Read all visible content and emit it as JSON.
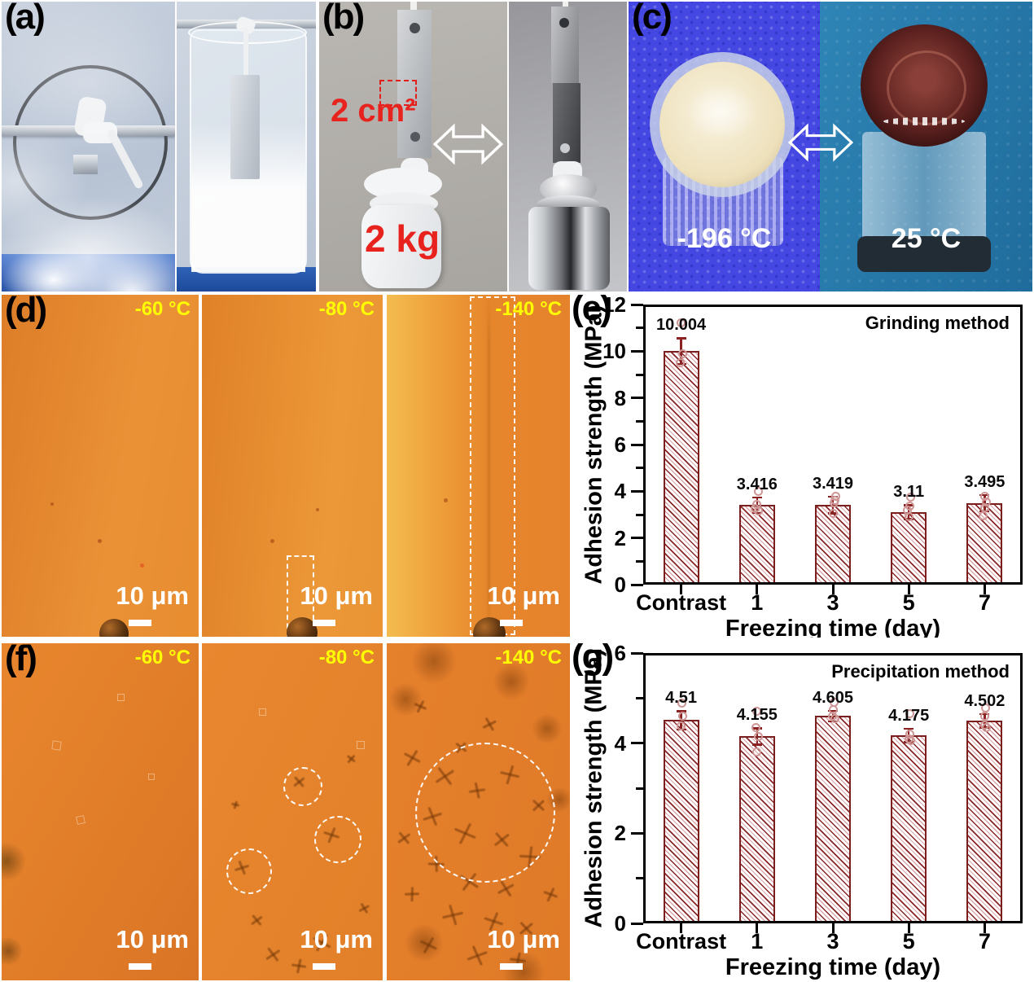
{
  "panels": {
    "a": {
      "label": "(a)"
    },
    "b": {
      "label": "(b)",
      "area_label": "2 cm²",
      "weight_label": "2 kg"
    },
    "c": {
      "label": "(c)",
      "left_temp": "-196 °C",
      "right_temp": "25 °C"
    },
    "d": {
      "label": "(d)",
      "tiles": [
        {
          "temp": "-60 °C",
          "scale": "10 μm"
        },
        {
          "temp": "-80 °C",
          "scale": "10 μm"
        },
        {
          "temp": "-140 °C",
          "scale": "10 μm"
        }
      ]
    },
    "f": {
      "label": "(f)",
      "tiles": [
        {
          "temp": "-60 °C",
          "scale": "10 μm"
        },
        {
          "temp": "-80 °C",
          "scale": "10 μm"
        },
        {
          "temp": "-140 °C",
          "scale": "10 μm"
        }
      ]
    }
  },
  "colors": {
    "bar_edge": "#7b1e1e",
    "bar_hatch": "#8a2525",
    "bar_hatch_light": "#dba8a8",
    "data_point": "#cf9696",
    "error_bar": "#8b2222",
    "temp_label": "#ffff00",
    "annotation_red": "#e8231d",
    "axis": "#000000"
  },
  "chart_data": [
    {
      "id": "e",
      "type": "bar",
      "panel_label": "(e)",
      "title": "Grinding method",
      "xlabel": "Freezing time (day)",
      "ylabel": "Adhesion strength (MPa)",
      "categories": [
        "Contrast",
        "1",
        "3",
        "5",
        "7"
      ],
      "values": [
        10.004,
        3.416,
        3.419,
        3.11,
        3.495
      ],
      "value_labels": [
        "10.004",
        "3.416",
        "3.419",
        "3.11",
        "3.495"
      ],
      "errors": [
        0.55,
        0.33,
        0.35,
        0.3,
        0.35
      ],
      "points": [
        [
          [
            11.2,
            0
          ],
          [
            9.9,
            2
          ],
          [
            9.5,
            -1
          ]
        ],
        [
          [
            4.0,
            2
          ],
          [
            3.45,
            0
          ],
          [
            3.25,
            -2
          ],
          [
            3.15,
            2
          ]
        ],
        [
          [
            3.8,
            3
          ],
          [
            3.6,
            2
          ],
          [
            3.5,
            1
          ],
          [
            3.05,
            0
          ]
        ],
        [
          [
            3.75,
            2
          ],
          [
            3.35,
            1
          ],
          [
            3.2,
            -2
          ],
          [
            2.9,
            0
          ]
        ],
        [
          [
            3.8,
            0
          ],
          [
            3.55,
            2
          ],
          [
            3.3,
            0
          ],
          [
            2.95,
            -2
          ]
        ]
      ],
      "ylim": [
        0,
        12
      ],
      "yticks": [
        0,
        2,
        4,
        6,
        8,
        10,
        12
      ],
      "yminor": [
        1,
        3,
        5,
        7,
        9,
        11
      ],
      "grid": false,
      "legend_position": "none"
    },
    {
      "id": "g",
      "type": "bar",
      "panel_label": "(g)",
      "title": "Precipitation method",
      "xlabel": "Freezing time (day)",
      "ylabel": "Adhesion strength (MPa)",
      "categories": [
        "Contrast",
        "1",
        "3",
        "5",
        "7"
      ],
      "values": [
        4.51,
        4.155,
        4.605,
        4.175,
        4.502
      ],
      "value_labels": [
        "4.51",
        "4.155",
        "4.605",
        "4.175",
        "4.502"
      ],
      "errors": [
        0.2,
        0.18,
        0.12,
        0.15,
        0.15
      ],
      "points": [
        [
          [
            4.88,
            1
          ],
          [
            4.6,
            2
          ],
          [
            4.38,
            0
          ]
        ],
        [
          [
            4.7,
            0
          ],
          [
            4.35,
            -1
          ],
          [
            4.15,
            2
          ],
          [
            3.8,
            0
          ]
        ],
        [
          [
            4.9,
            1
          ],
          [
            4.75,
            0
          ],
          [
            4.6,
            -1
          ],
          [
            4.55,
            2
          ]
        ],
        [
          [
            4.65,
            1
          ],
          [
            4.2,
            1
          ],
          [
            4.1,
            0
          ],
          [
            4.05,
            2
          ]
        ],
        [
          [
            4.78,
            1
          ],
          [
            4.6,
            0
          ],
          [
            4.4,
            0
          ],
          [
            4.35,
            2
          ]
        ]
      ],
      "ylim": [
        0,
        6
      ],
      "yticks": [
        0,
        2,
        4,
        6
      ],
      "yminor": [
        1,
        3,
        5
      ],
      "grid": false,
      "legend_position": "none"
    }
  ]
}
